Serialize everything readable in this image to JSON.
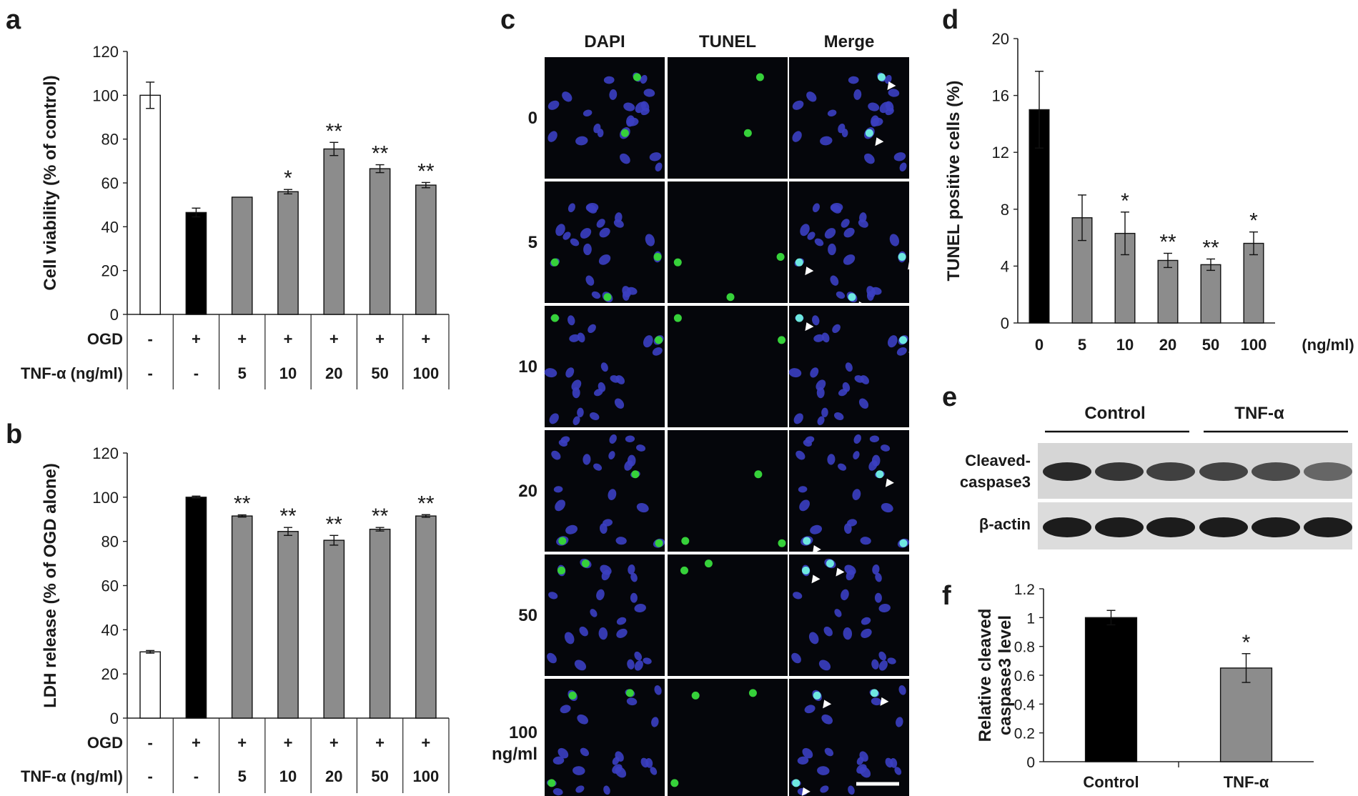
{
  "panel_letters": {
    "a": "a",
    "b": "b",
    "c": "c",
    "d": "d",
    "e": "e",
    "f": "f"
  },
  "chart_data": [
    {
      "panel": "a",
      "type": "bar",
      "ylabel": "Cell viability (% of control)",
      "ylim": [
        0,
        120
      ],
      "yticks": [
        0,
        20,
        40,
        60,
        80,
        100,
        120
      ],
      "values": [
        100,
        46.5,
        53.5,
        56,
        75.5,
        66.5,
        59
      ],
      "errors": [
        6,
        2,
        0,
        1,
        3,
        1.8,
        1.2
      ],
      "bar_colors": [
        "#ffffff",
        "#000000",
        "#8c8c8c",
        "#8c8c8c",
        "#8c8c8c",
        "#8c8c8c",
        "#8c8c8c"
      ],
      "significance": [
        "",
        "",
        "",
        "*",
        "**",
        "**",
        "**"
      ],
      "condition_rows": [
        {
          "label": "OGD",
          "values": [
            "-",
            "+",
            "+",
            "+",
            "+",
            "+",
            "+"
          ]
        },
        {
          "label": "TNF-α (ng/ml)",
          "values": [
            "-",
            "-",
            "5",
            "10",
            "20",
            "50",
            "100"
          ]
        }
      ]
    },
    {
      "panel": "b",
      "type": "bar",
      "ylabel": "LDH release (% of OGD alone)",
      "ylim": [
        0,
        120
      ],
      "yticks": [
        0,
        20,
        40,
        60,
        80,
        100,
        120
      ],
      "values": [
        30,
        100,
        91.5,
        84.5,
        80.5,
        85.5,
        91.5
      ],
      "errors": [
        0.6,
        0.5,
        0.5,
        1.8,
        2.2,
        0.8,
        0.6
      ],
      "bar_colors": [
        "#ffffff",
        "#000000",
        "#8c8c8c",
        "#8c8c8c",
        "#8c8c8c",
        "#8c8c8c",
        "#8c8c8c"
      ],
      "significance": [
        "",
        "",
        "**",
        "**",
        "**",
        "**",
        "**"
      ],
      "condition_rows": [
        {
          "label": "OGD",
          "values": [
            "-",
            "+",
            "+",
            "+",
            "+",
            "+",
            "+"
          ]
        },
        {
          "label": "TNF-α (ng/ml)",
          "values": [
            "-",
            "-",
            "5",
            "10",
            "20",
            "50",
            "100"
          ]
        }
      ]
    },
    {
      "panel": "d",
      "type": "bar",
      "ylabel": "TUNEL positive cells (%)",
      "ylim": [
        0,
        20
      ],
      "yticks": [
        0,
        4,
        8,
        12,
        16,
        20
      ],
      "categories": [
        "0",
        "5",
        "10",
        "20",
        "50",
        "100"
      ],
      "x_unit": "(ng/ml)",
      "values": [
        15,
        7.4,
        6.3,
        4.4,
        4.1,
        5.6
      ],
      "errors": [
        2.7,
        1.6,
        1.5,
        0.5,
        0.4,
        0.8
      ],
      "bar_colors": [
        "#000000",
        "#8c8c8c",
        "#8c8c8c",
        "#8c8c8c",
        "#8c8c8c",
        "#8c8c8c"
      ],
      "significance": [
        "",
        "",
        "*",
        "**",
        "**",
        "*"
      ]
    },
    {
      "panel": "f",
      "type": "bar",
      "ylabel": "Relative cleaved caspase3 level",
      "ylabel_lines": [
        "Relative cleaved",
        "caspase3 level"
      ],
      "ylim": [
        0,
        1.2
      ],
      "yticks": [
        0,
        0.2,
        0.4,
        0.6,
        0.8,
        1,
        1.2
      ],
      "ytick_labels": [
        "0",
        "0.2",
        "0.4",
        "0.6",
        "0.8",
        "1",
        "1.2"
      ],
      "categories": [
        "Control",
        "TNF-α"
      ],
      "values": [
        1.0,
        0.65
      ],
      "errors": [
        0.05,
        0.1
      ],
      "bar_colors": [
        "#000000",
        "#8c8c8c"
      ],
      "significance": [
        "",
        "*"
      ]
    }
  ],
  "microscopy": {
    "columns": [
      "DAPI",
      "TUNEL",
      "Merge"
    ],
    "rows": [
      "0",
      "5",
      "10",
      "20",
      "50",
      "100"
    ],
    "last_row_unit": "ng/ml"
  },
  "western_blot": {
    "groups": [
      "Control",
      "TNF-α"
    ],
    "bands": [
      "Cleaved-",
      "caspase3",
      "β-actin"
    ]
  }
}
